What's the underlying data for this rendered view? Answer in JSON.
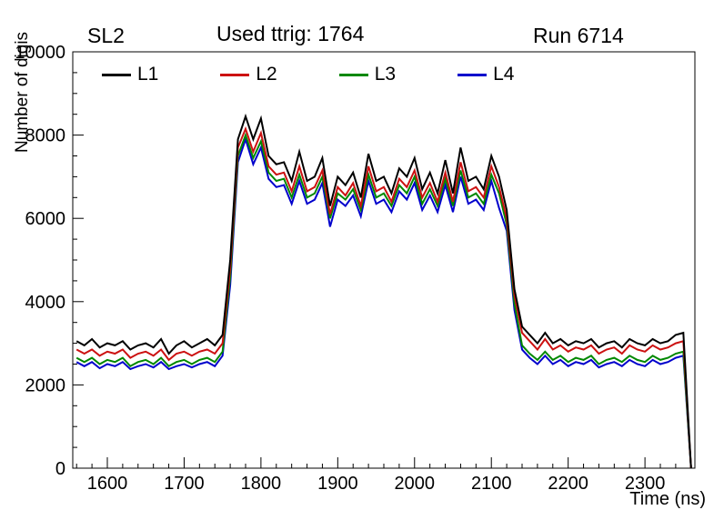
{
  "header": {
    "left": "SL2",
    "center": "Used ttrig: 1764",
    "right": "Run 6714"
  },
  "chart_data": {
    "type": "line",
    "title": "Used ttrig: 1764",
    "subtitle_left": "SL2",
    "subtitle_right": "Run 6714",
    "xlabel": "Time (ns)",
    "ylabel": "Number of digis",
    "xlim": [
      1555,
      2365
    ],
    "ylim": [
      0,
      10000
    ],
    "x_ticks_major": [
      1600,
      1700,
      1800,
      1900,
      2000,
      2100,
      2200,
      2300
    ],
    "y_ticks_major": [
      0,
      2000,
      4000,
      6000,
      8000,
      10000
    ],
    "x_minor_step": 20,
    "y_minor_step": 500,
    "grid": false,
    "legend_position": "top-inside",
    "x_start": 1560,
    "x_step": 10,
    "series": [
      {
        "name": "L1",
        "color": "#000000",
        "values": [
          3050,
          2950,
          3100,
          2900,
          3000,
          2950,
          3050,
          2850,
          2950,
          3000,
          2900,
          3100,
          2750,
          2950,
          3050,
          2900,
          3000,
          3100,
          2950,
          3200,
          5000,
          7900,
          8450,
          7900,
          8400,
          7500,
          7300,
          7350,
          6900,
          7600,
          6900,
          7000,
          7450,
          6300,
          7000,
          6800,
          7100,
          6500,
          7550,
          6900,
          7000,
          6600,
          7200,
          7000,
          7450,
          6700,
          7100,
          6600,
          7400,
          6600,
          7700,
          6900,
          7000,
          6700,
          7500,
          7000,
          6200,
          4300,
          3400,
          3200,
          3000,
          3250,
          3000,
          3100,
          2950,
          3050,
          3000,
          3100,
          2900,
          3000,
          3050,
          2900,
          3100,
          3000,
          2950,
          3100,
          3000,
          3050,
          3200,
          3250,
          0
        ]
      },
      {
        "name": "L2",
        "color": "#cc1111",
        "values": [
          2850,
          2750,
          2850,
          2700,
          2800,
          2750,
          2850,
          2650,
          2750,
          2800,
          2700,
          2850,
          2600,
          2750,
          2800,
          2700,
          2800,
          2850,
          2750,
          3000,
          4800,
          7700,
          8150,
          7600,
          8050,
          7250,
          7050,
          7100,
          6650,
          7250,
          6650,
          6750,
          7150,
          6100,
          6750,
          6550,
          6850,
          6300,
          7250,
          6650,
          6750,
          6400,
          6950,
          6750,
          7150,
          6500,
          6850,
          6400,
          7100,
          6400,
          7350,
          6650,
          6750,
          6500,
          7250,
          6750,
          6000,
          4150,
          3250,
          3050,
          2850,
          3100,
          2850,
          2950,
          2800,
          2900,
          2850,
          2950,
          2750,
          2850,
          2900,
          2750,
          2950,
          2850,
          2800,
          2950,
          2850,
          2900,
          3000,
          3050,
          0
        ]
      },
      {
        "name": "L3",
        "color": "#008800",
        "values": [
          2650,
          2550,
          2650,
          2500,
          2600,
          2550,
          2650,
          2450,
          2550,
          2600,
          2500,
          2650,
          2450,
          2550,
          2600,
          2500,
          2600,
          2650,
          2550,
          2800,
          4600,
          7500,
          8000,
          7450,
          7850,
          7100,
          6900,
          6950,
          6500,
          7050,
          6500,
          6600,
          7000,
          6000,
          6600,
          6450,
          6700,
          6200,
          7050,
          6500,
          6600,
          6300,
          6800,
          6600,
          7000,
          6350,
          6700,
          6300,
          6950,
          6300,
          7150,
          6500,
          6600,
          6350,
          7050,
          6600,
          5850,
          3950,
          2950,
          2750,
          2600,
          2800,
          2600,
          2700,
          2550,
          2650,
          2600,
          2700,
          2500,
          2600,
          2650,
          2550,
          2700,
          2600,
          2550,
          2700,
          2600,
          2650,
          2750,
          2800,
          0
        ]
      },
      {
        "name": "L4",
        "color": "#0000cc",
        "values": [
          2550,
          2450,
          2550,
          2400,
          2500,
          2450,
          2550,
          2380,
          2450,
          2500,
          2420,
          2550,
          2380,
          2450,
          2500,
          2420,
          2500,
          2550,
          2450,
          2700,
          4400,
          7350,
          7900,
          7300,
          7700,
          6950,
          6750,
          6800,
          6350,
          6900,
          6350,
          6450,
          6850,
          5800,
          6450,
          6300,
          6550,
          6050,
          6900,
          6350,
          6450,
          6150,
          6650,
          6450,
          6850,
          6200,
          6550,
          6150,
          6800,
          6150,
          7000,
          6350,
          6450,
          6200,
          6900,
          6250,
          5700,
          3800,
          2850,
          2650,
          2500,
          2700,
          2500,
          2600,
          2450,
          2550,
          2500,
          2600,
          2420,
          2500,
          2550,
          2450,
          2600,
          2500,
          2450,
          2600,
          2500,
          2550,
          2650,
          2700,
          0
        ]
      }
    ]
  }
}
